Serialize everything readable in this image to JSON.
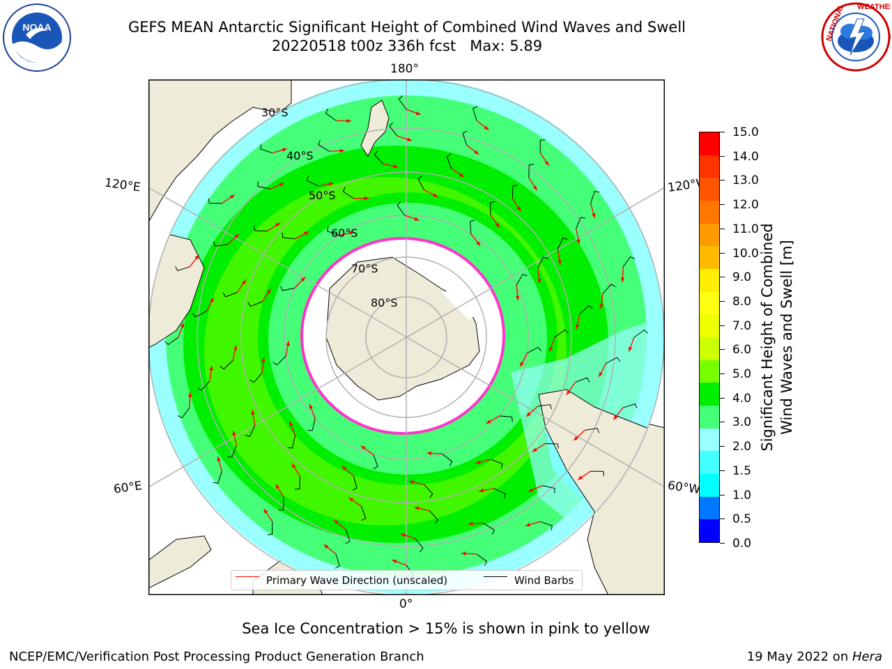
{
  "title": {
    "line1": "GEFS MEAN Antarctic Significant Height of Combined Wind Waves and Swell",
    "line2": "20220518 t00z 336h fcst   Max: 5.89"
  },
  "logos": {
    "left": {
      "name": "NOAA",
      "ring_text": "NATIONAL OCEANIC AND ATMOSPHERIC ADMINISTRATION · U.S. DEPARTMENT OF COMMERCE"
    },
    "right": {
      "name": "National Weather Service",
      "ring_text": "NATIONAL WEATHER SERVICE"
    }
  },
  "map": {
    "projection": "south-polar-stereographic",
    "longitude_labels": {
      "top": "180°",
      "bottom": "0°",
      "upper_left": "120°E",
      "upper_right": "120°W",
      "lower_left": "60°E",
      "lower_right": "60°W"
    },
    "latitude_labels": [
      "30°S",
      "40°S",
      "50°S",
      "60°S",
      "70°S",
      "80°S"
    ],
    "legend": {
      "wave_direction": "Primary Wave Direction (unscaled)",
      "wind_barbs": "Wind Barbs"
    },
    "colors": {
      "land": "#eeebd8",
      "sea_ice": "#ffffff",
      "ice_edge": "#ff33cc",
      "wave_arrow": "#ff0000",
      "barb": "#000000",
      "grid": "#b0b0b0"
    }
  },
  "colorbar": {
    "label_line1": "Significant Height of Combined",
    "label_line2": "Wind Waves and Swell [m]",
    "ticks": [
      "15.0",
      "14.0",
      "13.0",
      "12.0",
      "11.0",
      "10.0",
      "9.0",
      "8.0",
      "7.0",
      "6.0",
      "5.0",
      "4.0",
      "3.0",
      "2.0",
      "1.5",
      "1.0",
      "0.5",
      "0.0"
    ],
    "colors_top_to_bottom": [
      "#ff0000",
      "#ff3300",
      "#ff5500",
      "#ff7700",
      "#ff9900",
      "#ffbb00",
      "#ffee00",
      "#ffff11",
      "#eeff00",
      "#ccff00",
      "#77ff00",
      "#00ee00",
      "#44ff77",
      "#99ffff",
      "#44ffff",
      "#00ffff",
      "#0077ff",
      "#0000ff"
    ]
  },
  "footer": {
    "ice_note": "Sea Ice Concentration > 15% is shown in pink to yellow",
    "credit": "NCEP/EMC/Verification Post Processing Product Generation Branch",
    "date_prefix": "19 May 2022 on ",
    "machine": "Hera"
  }
}
